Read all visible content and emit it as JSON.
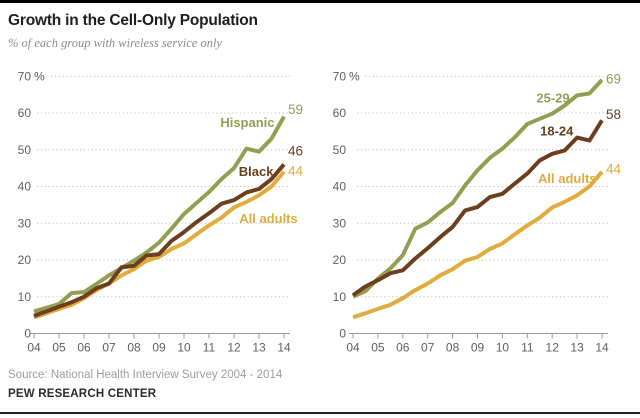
{
  "header": {
    "title": "Growth in the Cell-Only Population",
    "subtitle": "% of each group with wireless service only"
  },
  "footer": {
    "source": "Source: National Health Interview Survey 2004 - 2014",
    "brand": "PEW RESEARCH CENTER"
  },
  "colors": {
    "green": "#949E52",
    "brown": "#6D3E1E",
    "gold": "#E0AC3D",
    "grid": "#C4C4C4",
    "axis": "#999999",
    "axis_text": "#5F5F5F"
  },
  "chart_data": [
    {
      "type": "line",
      "position": "left",
      "x_start": 2004,
      "x_step_years": 0.5,
      "x_tick_labels": [
        "04",
        "05",
        "06",
        "07",
        "08",
        "09",
        "10",
        "11",
        "12",
        "13",
        "14"
      ],
      "ylim": [
        0,
        70
      ],
      "yticks": [
        0,
        10,
        20,
        30,
        40,
        50,
        60,
        70
      ],
      "y_unit_suffix": "%",
      "grid": "dotted",
      "legend_position": "inline-labels",
      "series": [
        {
          "name": "All adults",
          "color_key": "gold",
          "end_value_label": "44",
          "end_label_y": 44.2,
          "values": [
            4.4,
            5.5,
            6.7,
            7.8,
            9.6,
            11.8,
            13.6,
            15.8,
            17.5,
            19.8,
            20.8,
            23.0,
            24.5,
            27.0,
            29.4,
            31.5,
            34.3,
            35.8,
            37.6,
            40.0,
            44.0
          ]
        },
        {
          "name": "Hispanic",
          "color_key": "green",
          "end_value_label": "59",
          "end_label_y": 61.0,
          "values": [
            6.0,
            7.0,
            8.0,
            11.0,
            11.3,
            13.5,
            15.8,
            17.8,
            19.8,
            22.0,
            24.7,
            28.5,
            32.5,
            35.5,
            38.5,
            42.0,
            45.0,
            50.3,
            49.5,
            53.0,
            59.0
          ]
        },
        {
          "name": "Black",
          "color_key": "brown",
          "end_value_label": "46",
          "end_label_y": 49.7,
          "values": [
            4.8,
            6.0,
            7.3,
            8.5,
            10.0,
            12.3,
            13.6,
            18.0,
            18.4,
            21.2,
            21.6,
            25.2,
            27.6,
            30.3,
            32.7,
            35.3,
            36.3,
            38.4,
            39.3,
            42.0,
            46.0
          ]
        }
      ],
      "labels": [
        {
          "text": "Hispanic",
          "color_key": "green",
          "x": 2013.62,
          "y": 57.3,
          "anchor": "end"
        },
        {
          "text": "Black",
          "color_key": "brown",
          "x": 2013.58,
          "y": 44.0,
          "anchor": "end"
        },
        {
          "text": "All adults",
          "color_key": "gold",
          "x": 2014.55,
          "y": 31.2,
          "anchor": "end"
        }
      ]
    },
    {
      "type": "line",
      "position": "right",
      "x_start": 2004,
      "x_step_years": 0.5,
      "x_tick_labels": [
        "04",
        "05",
        "06",
        "07",
        "08",
        "09",
        "10",
        "11",
        "12",
        "13",
        "14"
      ],
      "ylim": [
        0,
        70
      ],
      "yticks": [
        0,
        10,
        20,
        30,
        40,
        50,
        60,
        70
      ],
      "y_unit_suffix": "%",
      "grid": "dotted",
      "legend_position": "inline-labels",
      "series": [
        {
          "name": "All adults",
          "color_key": "gold",
          "end_value_label": "44",
          "end_label_y": 44.7,
          "values": [
            4.4,
            5.5,
            6.7,
            7.8,
            9.6,
            11.8,
            13.6,
            15.8,
            17.5,
            19.8,
            20.8,
            23.0,
            24.5,
            27.0,
            29.4,
            31.5,
            34.3,
            35.8,
            37.6,
            40.0,
            44.0
          ]
        },
        {
          "name": "25-29",
          "color_key": "green",
          "end_value_label": "69",
          "end_label_y": 69.2,
          "values": [
            10.0,
            11.5,
            14.9,
            17.7,
            21.3,
            28.5,
            30.2,
            33.0,
            35.5,
            40.3,
            44.4,
            47.8,
            50.3,
            53.4,
            57.0,
            58.4,
            59.8,
            62.0,
            64.8,
            65.3,
            69.0
          ]
        },
        {
          "name": "18-24",
          "color_key": "brown",
          "end_value_label": "58",
          "end_label_y": 59.6,
          "values": [
            10.4,
            12.8,
            14.5,
            16.4,
            17.2,
            20.4,
            23.2,
            26.2,
            29.0,
            33.5,
            34.4,
            37.1,
            38.0,
            40.8,
            43.5,
            47.1,
            48.9,
            49.8,
            53.3,
            52.5,
            58.0
          ]
        }
      ],
      "labels": [
        {
          "text": "25-29",
          "color_key": "green",
          "x": 2012.7,
          "y": 64.0,
          "anchor": "end"
        },
        {
          "text": "18-24",
          "color_key": "brown",
          "x": 2012.85,
          "y": 55.0,
          "anchor": "end"
        },
        {
          "text": "All adults",
          "color_key": "gold",
          "x": 2013.78,
          "y": 42.0,
          "anchor": "end"
        }
      ]
    }
  ]
}
